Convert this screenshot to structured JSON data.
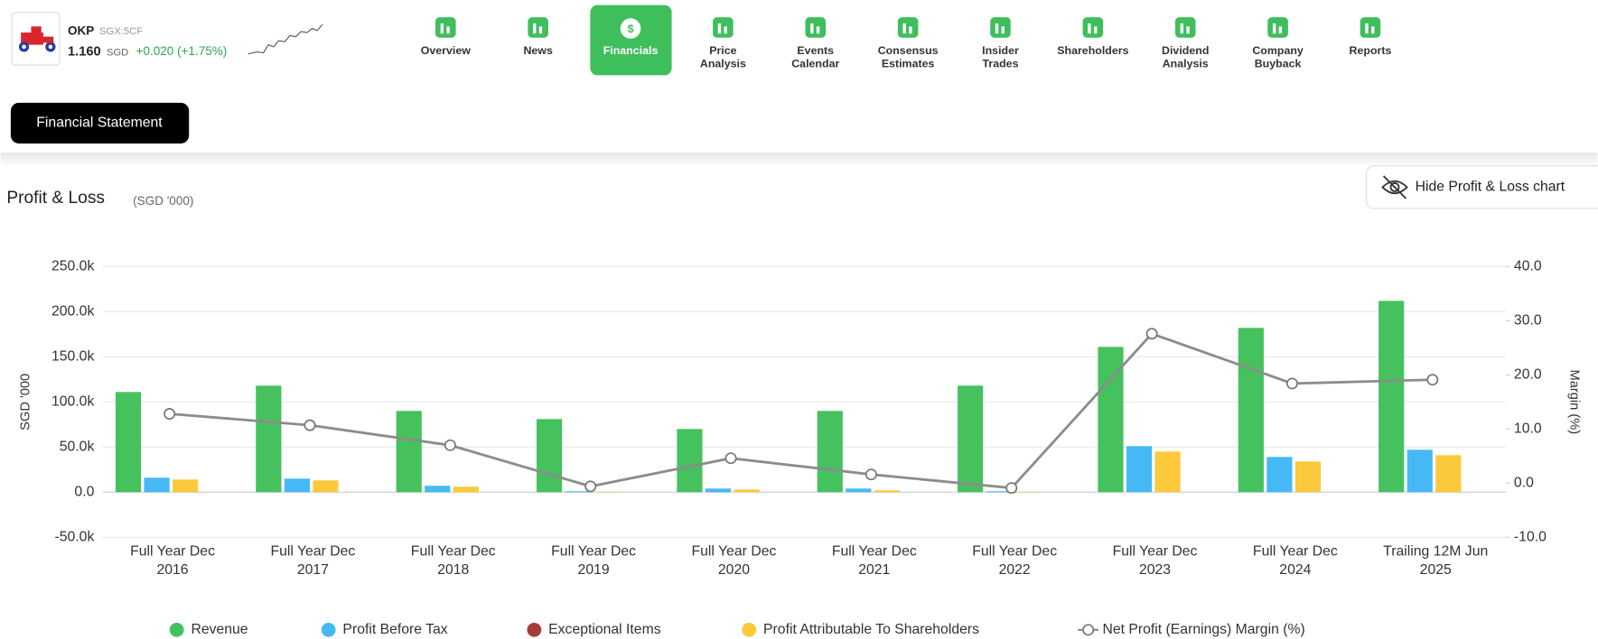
{
  "header": {
    "ticker": "OKP",
    "exchange": "SGX:5CF",
    "price": "1.160",
    "currency": "SGD",
    "change": "+0.020 (+1.75%)"
  },
  "nav": [
    "Overview",
    "News",
    "Financials",
    "Price Analysis",
    "Events Calendar",
    "Consensus Estimates",
    "Insider Trades",
    "Shareholders",
    "Dividend Analysis",
    "Company Buyback",
    "Reports"
  ],
  "statement_button": "Financial Statement",
  "toggle_button": "Hide Profit & Loss chart",
  "chart_data": {
    "type": "bar",
    "title": "Profit & Loss",
    "subtitle": "(SGD '000)",
    "ylabel": "SGD '000",
    "y2label": "Margin (%)",
    "categories": [
      "Full Year Dec 2016",
      "Full Year Dec 2017",
      "Full Year Dec 2018",
      "Full Year Dec 2019",
      "Full Year Dec 2020",
      "Full Year Dec 2021",
      "Full Year Dec 2022",
      "Full Year Dec 2023",
      "Full Year Dec 2024",
      "Trailing 12M Jun 2025"
    ],
    "series": [
      {
        "name": "Revenue",
        "color": "#45c15e",
        "values": [
          111000,
          118000,
          90000,
          81000,
          70000,
          90000,
          118000,
          161000,
          182000,
          212000
        ]
      },
      {
        "name": "Profit Before Tax",
        "color": "#45b9f6",
        "values": [
          16000,
          15000,
          7000,
          1000,
          4000,
          4000,
          1000,
          51000,
          39000,
          47000
        ]
      },
      {
        "name": "Exceptional Items",
        "color": "#a83c3c",
        "values": [
          0,
          0,
          0,
          0,
          0,
          0,
          0,
          0,
          0,
          0
        ]
      },
      {
        "name": "Profit Attributable To Shareholders",
        "color": "#fcc93c",
        "values": [
          14000,
          13000,
          6000,
          500,
          3000,
          2000,
          500,
          45000,
          34000,
          41000
        ]
      },
      {
        "name": "Net Profit (Earnings) Margin (%)",
        "color": "#8c8c8c",
        "type": "line",
        "axis": "y2",
        "values": [
          12.8,
          10.7,
          7.0,
          -0.6,
          4.6,
          1.6,
          -0.9,
          27.6,
          18.4,
          19.1
        ]
      }
    ],
    "ylim": [
      -50000,
      250000
    ],
    "yticks": [
      {
        "value": -50000,
        "label": "-50.0k"
      },
      {
        "value": 0,
        "label": "0.0"
      },
      {
        "value": 50000,
        "label": "50.0k"
      },
      {
        "value": 100000,
        "label": "100.0k"
      },
      {
        "value": 150000,
        "label": "150.0k"
      },
      {
        "value": 200000,
        "label": "200.0k"
      },
      {
        "value": 250000,
        "label": "250.0k"
      }
    ],
    "y2lim": [
      -10,
      40
    ],
    "y2ticks": [
      {
        "value": -10,
        "label": "-10.0"
      },
      {
        "value": 0,
        "label": "0.0"
      },
      {
        "value": 10,
        "label": "10.0"
      },
      {
        "value": 20,
        "label": "20.0"
      },
      {
        "value": 30,
        "label": "30.0"
      },
      {
        "value": 40,
        "label": "40.0"
      }
    ],
    "grid": true,
    "legend": "bottom"
  }
}
